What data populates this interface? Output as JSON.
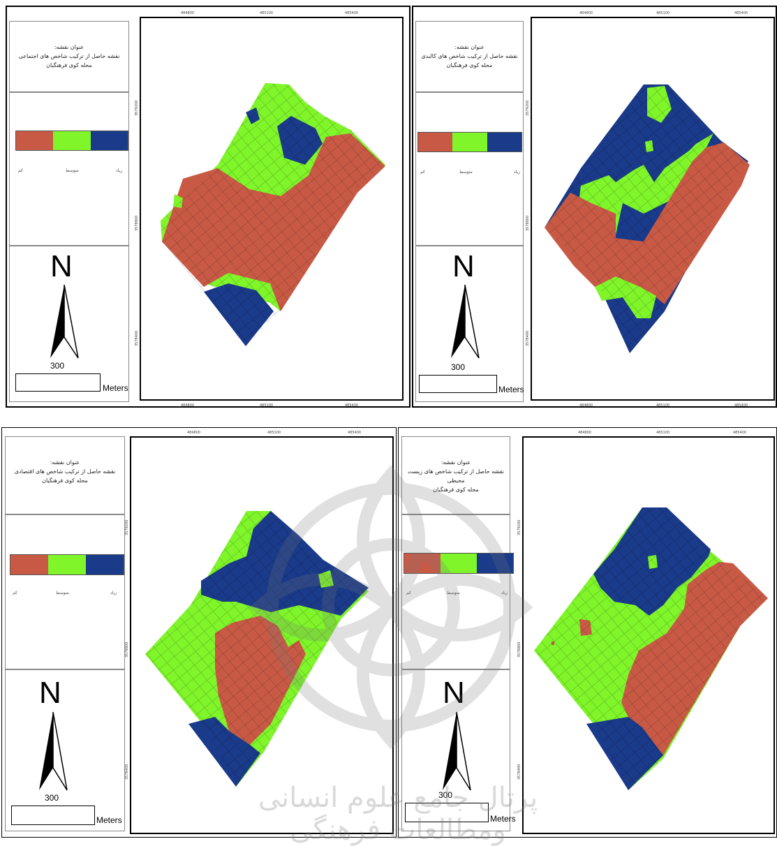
{
  "colors": {
    "low": "#c85a45",
    "medium": "#7ff52a",
    "high": "#1a3a8a",
    "watermark": "#9a9a9a"
  },
  "legend": {
    "low_label": "کم",
    "medium_label": "متوسط",
    "high_label": "زیاد"
  },
  "north_label": "N",
  "scale": {
    "value": "300",
    "unit": "Meters"
  },
  "ticks": {
    "x": [
      "484800",
      "485100",
      "485400"
    ],
    "y": [
      "3579200",
      "3578800",
      "3578400"
    ]
  },
  "panels": [
    {
      "title_lines": [
        "عنوان نقشه:",
        "نقشه حاصل از ترکیب شاخص های اجتماعی",
        "محله کوی فرهنگیان"
      ]
    },
    {
      "title_lines": [
        "عنوان نقشه:",
        "نقشه حاصل از ترکیب شاخص های کالبدی",
        "محله کوی فرهنگیان"
      ]
    },
    {
      "title_lines": [
        "عنوان نقشه:",
        "نقشه حاصل از ترکیب شاخص های اقتصادی",
        "محله کوی فرهنگیان"
      ]
    },
    {
      "title_lines": [
        "عنوان نقشه:",
        "نقشه حاصل از ترکیب شاخص های زیست محیطی",
        "محله کوی فرهنگیان"
      ]
    }
  ],
  "watermark_text": "پرتال جامع علوم انسانی ومطالعات فرهنگی"
}
